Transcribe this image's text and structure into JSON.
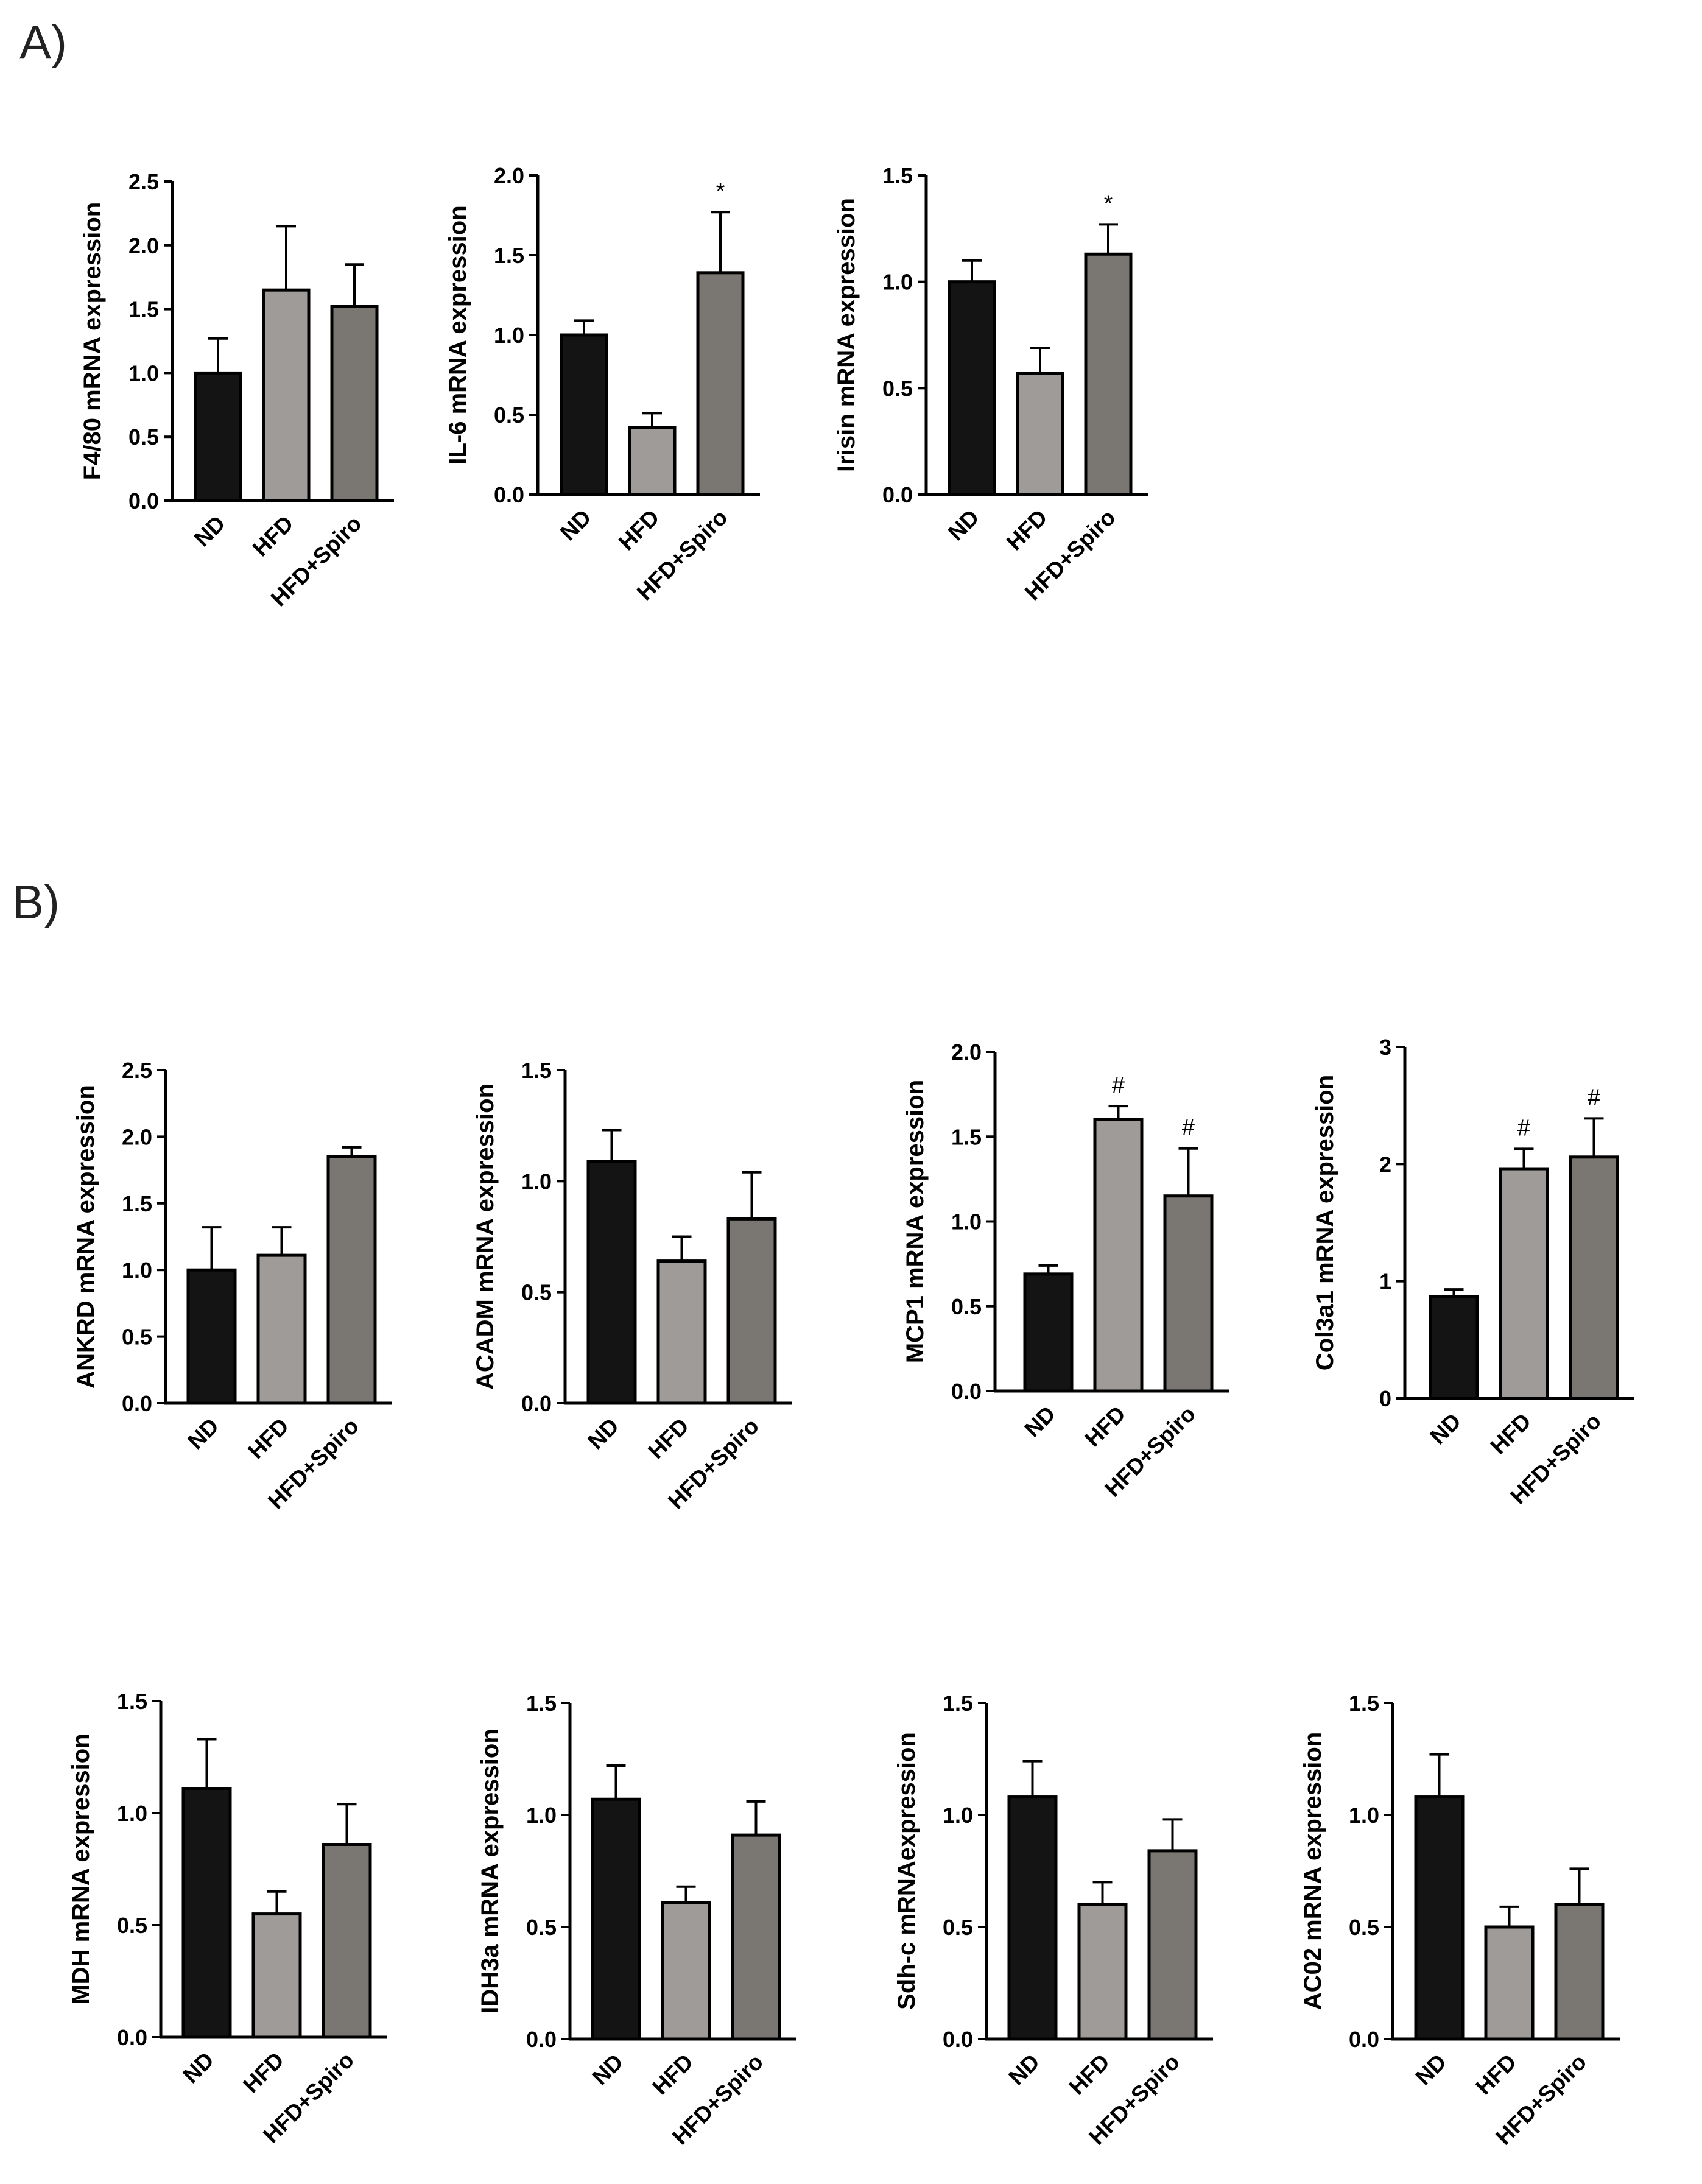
{
  "panel_labels": {
    "a": "A)",
    "b": "B)"
  },
  "colors": {
    "ND": "#141414",
    "HFD": "#9e9b98",
    "HFD+Spiro": "#7a7672",
    "outline": "#000000"
  },
  "chart_data": [
    {
      "id": "f480",
      "type": "bar",
      "title": "",
      "xlabel": "",
      "ylabel": "F4/80 mRNA expression",
      "categories": [
        "ND",
        "HFD",
        "HFD+Spiro"
      ],
      "values": [
        1.0,
        1.65,
        1.52
      ],
      "error": [
        0.27,
        0.5,
        0.33
      ],
      "annotations": [
        "",
        "",
        ""
      ],
      "ylim": [
        0,
        2.5
      ],
      "yticks": [
        0,
        0.5,
        1.0,
        1.5,
        2.0,
        2.5
      ],
      "ytick_labels": [
        "0.0",
        "0.5",
        "1.0",
        "1.5",
        "2.0",
        "2.5"
      ]
    },
    {
      "id": "il6",
      "type": "bar",
      "title": "",
      "xlabel": "",
      "ylabel": "IL-6 mRNA expression",
      "categories": [
        "ND",
        "HFD",
        "HFD+Spiro"
      ],
      "values": [
        1.0,
        0.42,
        1.39
      ],
      "error": [
        0.09,
        0.09,
        0.38
      ],
      "annotations": [
        "",
        "",
        "*"
      ],
      "ylim": [
        0,
        2.0
      ],
      "yticks": [
        0,
        0.5,
        1.0,
        1.5,
        2.0
      ],
      "ytick_labels": [
        "0.0",
        "0.5",
        "1.0",
        "1.5",
        "2.0"
      ]
    },
    {
      "id": "irisin",
      "type": "bar",
      "title": "",
      "xlabel": "",
      "ylabel": "Irisin mRNA expression",
      "categories": [
        "ND",
        "HFD",
        "HFD+Spiro"
      ],
      "values": [
        1.0,
        0.57,
        1.13
      ],
      "error": [
        0.1,
        0.12,
        0.14
      ],
      "annotations": [
        "",
        "",
        "*"
      ],
      "ylim": [
        0,
        1.5
      ],
      "yticks": [
        0,
        0.5,
        1.0,
        1.5
      ],
      "ytick_labels": [
        "0.0",
        "0.5",
        "1.0",
        "1.5"
      ]
    },
    {
      "id": "ankrd",
      "type": "bar",
      "title": "",
      "xlabel": "",
      "ylabel": "ANKRD mRNA expression",
      "categories": [
        "ND",
        "HFD",
        "HFD+Spiro"
      ],
      "values": [
        1.0,
        1.11,
        1.85
      ],
      "error": [
        0.32,
        0.21,
        0.07
      ],
      "annotations": [
        "",
        "",
        ""
      ],
      "ylim": [
        0,
        2.5
      ],
      "yticks": [
        0,
        0.5,
        1.0,
        1.5,
        2.0,
        2.5
      ],
      "ytick_labels": [
        "0.0",
        "0.5",
        "1.0",
        "1.5",
        "2.0",
        "2.5"
      ]
    },
    {
      "id": "acadm",
      "type": "bar",
      "title": "",
      "xlabel": "",
      "ylabel": "ACADM mRNA expression",
      "categories": [
        "ND",
        "HFD",
        "HFD+Spiro"
      ],
      "values": [
        1.09,
        0.64,
        0.83
      ],
      "error": [
        0.14,
        0.11,
        0.21
      ],
      "annotations": [
        "",
        "",
        ""
      ],
      "ylim": [
        0,
        1.5
      ],
      "yticks": [
        0,
        0.5,
        1.0,
        1.5
      ],
      "ytick_labels": [
        "0.0",
        "0.5",
        "1.0",
        "1.5"
      ]
    },
    {
      "id": "mcp1",
      "type": "bar",
      "title": "",
      "xlabel": "",
      "ylabel": "MCP1 mRNA expression",
      "categories": [
        "ND",
        "HFD",
        "HFD+Spiro"
      ],
      "values": [
        0.69,
        1.6,
        1.15
      ],
      "error": [
        0.05,
        0.08,
        0.28
      ],
      "annotations": [
        "",
        "#",
        "#"
      ],
      "ylim": [
        0,
        2.0
      ],
      "yticks": [
        0,
        0.5,
        1.0,
        1.5,
        2.0
      ],
      "ytick_labels": [
        "0.0",
        "0.5",
        "1.0",
        "1.5",
        "2.0"
      ]
    },
    {
      "id": "col3a1",
      "type": "bar",
      "title": "",
      "xlabel": "",
      "ylabel": "Col3a1 mRNA expression",
      "categories": [
        "ND",
        "HFD",
        "HFD+Spiro"
      ],
      "values": [
        0.87,
        1.96,
        2.06
      ],
      "error": [
        0.06,
        0.17,
        0.33
      ],
      "annotations": [
        "",
        "#",
        "#"
      ],
      "ylim": [
        0,
        3
      ],
      "yticks": [
        0,
        1,
        2,
        3
      ],
      "ytick_labels": [
        "0",
        "1",
        "2",
        "3"
      ]
    },
    {
      "id": "mdh",
      "type": "bar",
      "title": "",
      "xlabel": "",
      "ylabel": "MDH mRNA expression",
      "categories": [
        "ND",
        "HFD",
        "HFD+Spiro"
      ],
      "values": [
        1.11,
        0.55,
        0.86
      ],
      "error": [
        0.22,
        0.1,
        0.18
      ],
      "annotations": [
        "",
        "",
        ""
      ],
      "ylim": [
        0,
        1.5
      ],
      "yticks": [
        0,
        0.5,
        1.0,
        1.5
      ],
      "ytick_labels": [
        "0.0",
        "0.5",
        "1.0",
        "1.5"
      ]
    },
    {
      "id": "idh3a",
      "type": "bar",
      "title": "",
      "xlabel": "",
      "ylabel": "IDH3a mRNA expression",
      "categories": [
        "ND",
        "HFD",
        "HFD+Spiro"
      ],
      "values": [
        1.07,
        0.61,
        0.91
      ],
      "error": [
        0.15,
        0.07,
        0.15
      ],
      "annotations": [
        "",
        "",
        ""
      ],
      "ylim": [
        0,
        1.5
      ],
      "yticks": [
        0,
        0.5,
        1.0,
        1.5
      ],
      "ytick_labels": [
        "0.0",
        "0.5",
        "1.0",
        "1.5"
      ]
    },
    {
      "id": "sdhc",
      "type": "bar",
      "title": "",
      "xlabel": "",
      "ylabel": "Sdh-c mRNAexpression",
      "categories": [
        "ND",
        "HFD",
        "HFD+Spiro"
      ],
      "values": [
        1.08,
        0.6,
        0.84
      ],
      "error": [
        0.16,
        0.1,
        0.14
      ],
      "annotations": [
        "",
        "",
        ""
      ],
      "ylim": [
        0,
        1.5
      ],
      "yticks": [
        0,
        0.5,
        1.0,
        1.5
      ],
      "ytick_labels": [
        "0.0",
        "0.5",
        "1.0",
        "1.5"
      ]
    },
    {
      "id": "ac02",
      "type": "bar",
      "title": "",
      "xlabel": "",
      "ylabel": "AC02 mRNA expression",
      "categories": [
        "ND",
        "HFD",
        "HFD+Spiro"
      ],
      "values": [
        1.08,
        0.5,
        0.6
      ],
      "error": [
        0.19,
        0.09,
        0.16
      ],
      "annotations": [
        "",
        "",
        ""
      ],
      "ylim": [
        0,
        1.5
      ],
      "yticks": [
        0,
        0.5,
        1.0,
        1.5
      ],
      "ytick_labels": [
        "0.0",
        "0.5",
        "1.0",
        "1.5"
      ]
    }
  ]
}
